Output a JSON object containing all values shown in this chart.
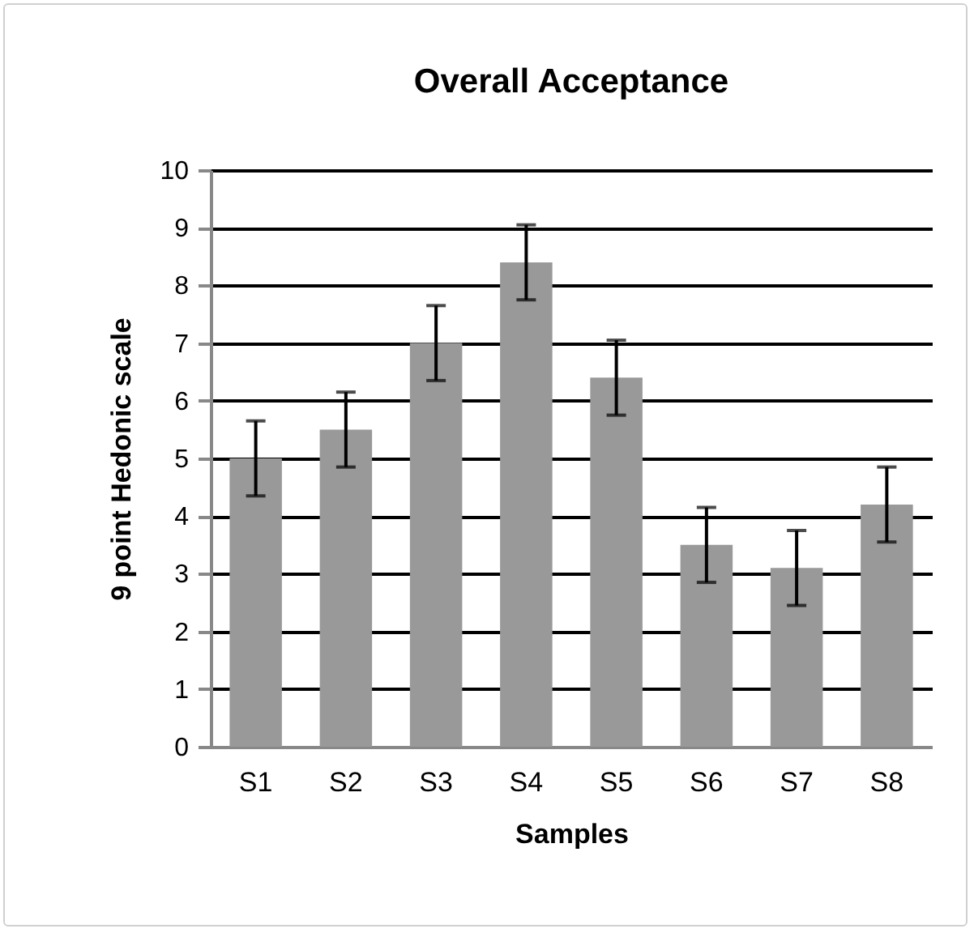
{
  "chart_data": {
    "type": "bar",
    "title": "Overall Acceptance",
    "xlabel": "Samples",
    "ylabel": "9 point Hedonic scale",
    "categories": [
      "S1",
      "S2",
      "S3",
      "S4",
      "S5",
      "S6",
      "S7",
      "S8"
    ],
    "values": [
      5.0,
      5.5,
      7.0,
      8.4,
      6.4,
      3.5,
      3.1,
      4.2
    ],
    "errors": [
      0.65,
      0.65,
      0.65,
      0.65,
      0.65,
      0.65,
      0.65,
      0.65
    ],
    "color": "#999999",
    "ylim": [
      0,
      10
    ],
    "yticks": [
      0,
      1,
      2,
      3,
      4,
      5,
      6,
      7,
      8,
      9,
      10
    ],
    "grid": "y"
  }
}
